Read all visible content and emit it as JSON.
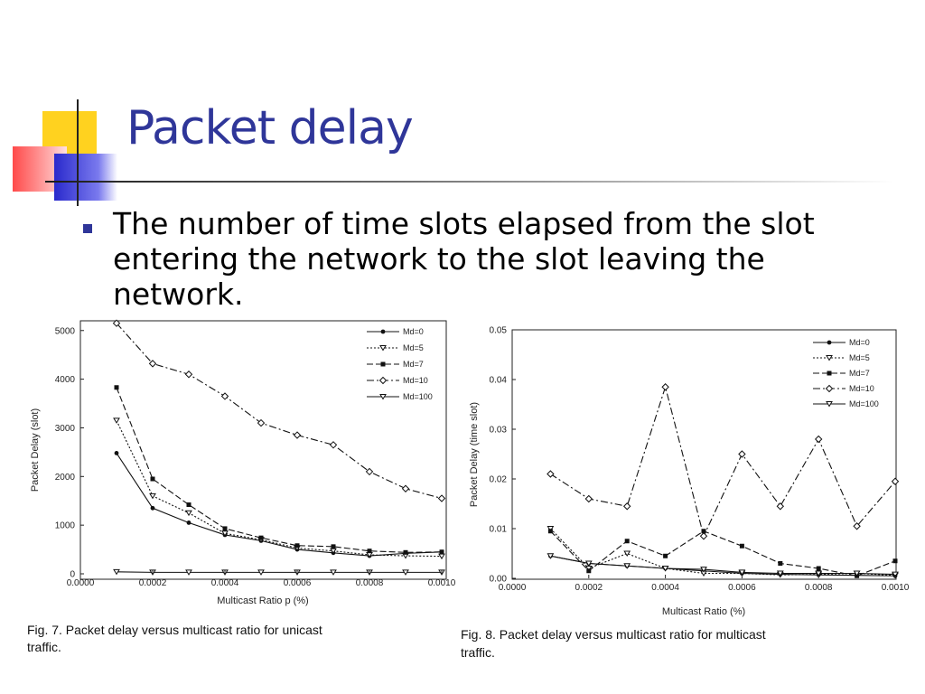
{
  "slide": {
    "title": "Packet delay",
    "bullet": "The number of time slots elapsed from the slot entering the network to the slot leaving the network."
  },
  "colors": {
    "title": "#2f3699",
    "accent_yellow": "#ffd21f",
    "accent_red": "#ff4a4a",
    "accent_blue": "#2a2acc"
  },
  "chart_data": [
    {
      "type": "line",
      "caption_line1": "Fig. 7.   Packet delay versus multicast ratio for unicast",
      "caption_line2": "traffic.",
      "xlabel": "Multicast Ratio p (%)",
      "ylabel": "Packet Delay (slot)",
      "xlim": [
        0,
        0.001
      ],
      "ylim": [
        0,
        5200
      ],
      "xticks": [
        "0.0000",
        "0.0002",
        "0.0004",
        "0.0006",
        "0.0008",
        "0.0010"
      ],
      "yticks": [
        "0",
        "1000",
        "2000",
        "3000",
        "4000",
        "5000"
      ],
      "x": [
        0.0001,
        0.0002,
        0.0003,
        0.0004,
        0.0005,
        0.0006,
        0.0007,
        0.0008,
        0.0009,
        0.001
      ],
      "legend_position": "top-right",
      "series": [
        {
          "name": "Md=0",
          "values": [
            2480,
            1350,
            1050,
            800,
            680,
            500,
            430,
            370,
            420,
            450
          ],
          "dash": "",
          "marker": "dot"
        },
        {
          "name": "Md=5",
          "values": [
            3150,
            1600,
            1250,
            830,
            700,
            530,
            470,
            390,
            370,
            360
          ],
          "dash": "2,2",
          "marker": "tri"
        },
        {
          "name": "Md=7",
          "values": [
            3830,
            1950,
            1420,
            930,
            740,
            580,
            560,
            470,
            440,
            450
          ],
          "dash": "7,3",
          "marker": "sq"
        },
        {
          "name": "Md=10",
          "values": [
            5150,
            4320,
            4100,
            3650,
            3100,
            2850,
            2650,
            2100,
            1750,
            1550
          ],
          "dash": "8,3,2,3",
          "marker": "dia"
        },
        {
          "name": "Md=100",
          "values": [
            40,
            30,
            30,
            30,
            30,
            30,
            30,
            30,
            30,
            30
          ],
          "dash": "",
          "marker": "tri"
        }
      ]
    },
    {
      "type": "line",
      "caption_line1": "Fig. 8.   Packet delay versus multicast ratio for multicast",
      "caption_line2": "traffic.",
      "xlabel": "Multicast Ratio (%)",
      "ylabel": "Packet Delay (time slot)",
      "xlim": [
        0,
        0.001
      ],
      "ylim": [
        0,
        0.05
      ],
      "xticks": [
        "0.0000",
        "0.0002",
        "0.0004",
        "0.0006",
        "0.0008",
        "0.0010"
      ],
      "yticks": [
        "0.00",
        "0.01",
        "0.02",
        "0.03",
        "0.04",
        "0.05"
      ],
      "x": [
        0.0001,
        0.0002,
        0.0003,
        0.0004,
        0.0005,
        0.0006,
        0.0007,
        0.0008,
        0.0009,
        0.001
      ],
      "legend_position": "top-right",
      "series": [
        {
          "name": "Md=0",
          "values": [
            0.0045,
            0.003,
            0.0025,
            0.002,
            0.0015,
            0.001,
            0.0008,
            0.0007,
            0.0006,
            0.0005
          ],
          "dash": "",
          "marker": "dot"
        },
        {
          "name": "Md=5",
          "values": [
            0.01,
            0.002,
            0.005,
            0.002,
            0.001,
            0.001,
            0.0007,
            0.0008,
            0.001,
            0.0006
          ],
          "dash": "2,2",
          "marker": "tri"
        },
        {
          "name": "Md=7",
          "values": [
            0.0095,
            0.0015,
            0.0075,
            0.0045,
            0.0095,
            0.0065,
            0.003,
            0.002,
            0.0005,
            0.0035
          ],
          "dash": "7,3",
          "marker": "sq"
        },
        {
          "name": "Md=10",
          "values": [
            0.021,
            0.016,
            0.0145,
            0.0385,
            0.0085,
            0.025,
            0.0145,
            0.028,
            0.0105,
            0.0195
          ],
          "dash": "8,3,2,3",
          "marker": "dia"
        },
        {
          "name": "Md=100",
          "values": [
            0.0045,
            0.003,
            0.0025,
            0.002,
            0.0018,
            0.0012,
            0.001,
            0.001,
            0.001,
            0.0008
          ],
          "dash": "",
          "marker": "tri"
        }
      ]
    }
  ]
}
